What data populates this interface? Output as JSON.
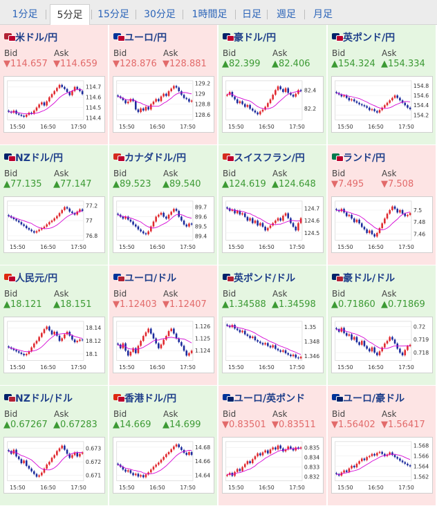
{
  "tabs": [
    "1分足",
    "5分足",
    "15分足",
    "30分足",
    "1時間足",
    "日足",
    "週足",
    "月足"
  ],
  "active_tab": "5分足",
  "labels": {
    "bid": "Bid",
    "ask": "Ask"
  },
  "colors": {
    "up_bg": "#e5f6e1",
    "down_bg": "#fde4e4",
    "up_text": "#3c9a34",
    "down_text": "#e26a6a",
    "pair_title": "#1f3f8a",
    "tab_link": "#2a63b8"
  },
  "pairs": [
    {
      "name": "米ドル/円",
      "dir": "down",
      "bid": "▼114.657",
      "ask": "▼114.659",
      "flags": [
        "#b22234",
        "#bc002d"
      ],
      "chart": {
        "type": "candlestick",
        "xticks": [
          "15:50",
          "16:50",
          "17:50"
        ],
        "yticks": [
          "114.7",
          "114.6",
          "114.5",
          "114.4"
        ],
        "ylim": [
          114.38,
          114.76
        ],
        "ma_color": "#d400d4",
        "closes": [
          114.46,
          114.45,
          114.47,
          114.44,
          114.43,
          114.42,
          114.41,
          114.43,
          114.45,
          114.44,
          114.47,
          114.5,
          114.53,
          114.55,
          114.52,
          114.56,
          114.6,
          114.63,
          114.66,
          114.69,
          114.72,
          114.7,
          114.68,
          114.65,
          114.62,
          114.66,
          114.7,
          114.68,
          114.66,
          114.63
        ]
      }
    },
    {
      "name": "ユーロ/円",
      "dir": "down",
      "bid": "▼128.876",
      "ask": "▼128.881",
      "flags": [
        "#003399",
        "#bc002d"
      ],
      "chart": {
        "type": "candlestick",
        "xticks": [
          "15:50",
          "16:50",
          "17:50"
        ],
        "yticks": [
          "129.2",
          "129",
          "128.8",
          "128.6"
        ],
        "ylim": [
          128.5,
          129.25
        ],
        "ma_color": "#d400d4",
        "closes": [
          128.95,
          128.92,
          128.88,
          128.82,
          128.85,
          128.9,
          128.86,
          128.7,
          128.65,
          128.72,
          128.68,
          128.75,
          128.7,
          128.8,
          128.85,
          128.9,
          128.86,
          128.95,
          129.0,
          128.96,
          129.05,
          129.1,
          129.15,
          129.12,
          129.05,
          128.98,
          128.92,
          128.9,
          128.85,
          128.87
        ]
      }
    },
    {
      "name": "豪ドル/円",
      "dir": "up",
      "bid": "▲82.399",
      "ask": "▲82.406",
      "flags": [
        "#012169",
        "#bc002d"
      ],
      "chart": {
        "type": "candlestick",
        "xticks": [
          "15:50",
          "16:50",
          "17:50"
        ],
        "yticks": [
          "82.4",
          "82.2"
        ],
        "ylim": [
          82.08,
          82.5
        ],
        "ma_color": "#d400d4",
        "closes": [
          82.35,
          82.38,
          82.33,
          82.3,
          82.26,
          82.28,
          82.25,
          82.22,
          82.24,
          82.2,
          82.18,
          82.16,
          82.14,
          82.17,
          82.19,
          82.22,
          82.26,
          82.3,
          82.35,
          82.4,
          82.44,
          82.41,
          82.38,
          82.42,
          82.37,
          82.35,
          82.33,
          82.36,
          82.4,
          82.39
        ]
      }
    },
    {
      "name": "英ポンド/円",
      "dir": "up",
      "bid": "▲154.324",
      "ask": "▲154.334",
      "flags": [
        "#012169",
        "#bc002d"
      ],
      "chart": {
        "type": "candlestick",
        "xticks": [
          "15:50",
          "16:50",
          "17:50"
        ],
        "yticks": [
          "154.8",
          "154.6",
          "154.4",
          "154.2"
        ],
        "ylim": [
          154.1,
          154.9
        ],
        "ma_color": "#d400d4",
        "closes": [
          154.65,
          154.62,
          154.58,
          154.6,
          154.55,
          154.5,
          154.52,
          154.48,
          154.45,
          154.42,
          154.4,
          154.38,
          154.35,
          154.3,
          154.32,
          154.28,
          154.25,
          154.3,
          154.35,
          154.4,
          154.45,
          154.5,
          154.55,
          154.6,
          154.55,
          154.5,
          154.45,
          154.4,
          154.35,
          154.32
        ]
      }
    },
    {
      "name": "NZドル/円",
      "dir": "up",
      "bid": "▲77.135",
      "ask": "▲77.147",
      "flags": [
        "#012169",
        "#bc002d"
      ],
      "chart": {
        "type": "candlestick",
        "xticks": [
          "15:50",
          "16:50",
          "17:50"
        ],
        "yticks": [
          "77.2",
          "77",
          "76.8"
        ],
        "ylim": [
          76.74,
          77.26
        ],
        "ma_color": "#d400d4",
        "closes": [
          77.06,
          77.04,
          77.02,
          77.0,
          76.98,
          76.95,
          76.93,
          76.9,
          76.88,
          76.86,
          76.84,
          76.86,
          76.88,
          76.9,
          76.92,
          76.95,
          76.98,
          77.0,
          77.03,
          77.06,
          77.1,
          77.14,
          77.18,
          77.16,
          77.12,
          77.1,
          77.08,
          77.12,
          77.15,
          77.13
        ]
      }
    },
    {
      "name": "カナダドル/円",
      "dir": "up",
      "bid": "▲89.523",
      "ask": "▲89.540",
      "flags": [
        "#d52b1e",
        "#bc002d"
      ],
      "chart": {
        "type": "candlestick",
        "xticks": [
          "15:50",
          "16:50",
          "17:50"
        ],
        "yticks": [
          "89.7",
          "89.6",
          "89.5",
          "89.4"
        ],
        "ylim": [
          89.36,
          89.76
        ],
        "ma_color": "#d400d4",
        "closes": [
          89.62,
          89.6,
          89.58,
          89.6,
          89.57,
          89.55,
          89.52,
          89.5,
          89.47,
          89.45,
          89.43,
          89.42,
          89.45,
          89.5,
          89.55,
          89.6,
          89.62,
          89.64,
          89.6,
          89.58,
          89.62,
          89.65,
          89.68,
          89.66,
          89.6,
          89.56,
          89.52,
          89.5,
          89.53,
          89.52
        ]
      }
    },
    {
      "name": "スイスフラン/円",
      "dir": "up",
      "bid": "▲124.619",
      "ask": "▲124.648",
      "flags": [
        "#d52b1e",
        "#bc002d"
      ],
      "chart": {
        "type": "candlestick",
        "xticks": [
          "15:50",
          "16:50",
          "17:50"
        ],
        "yticks": [
          "124.7",
          "124.6",
          "124.5"
        ],
        "ylim": [
          124.44,
          124.76
        ],
        "ma_color": "#d400d4",
        "closes": [
          124.7,
          124.68,
          124.69,
          124.66,
          124.68,
          124.65,
          124.66,
          124.63,
          124.6,
          124.62,
          124.58,
          124.6,
          124.56,
          124.58,
          124.55,
          124.52,
          124.54,
          124.56,
          124.58,
          124.6,
          124.62,
          124.6,
          124.64,
          124.66,
          124.62,
          124.58,
          124.55,
          124.52,
          124.58,
          124.62
        ]
      }
    },
    {
      "name": "ランド/円",
      "dir": "down",
      "bid": "▼7.495",
      "ask": "▼7.508",
      "flags": [
        "#007a4d",
        "#bc002d"
      ],
      "chart": {
        "type": "candlestick",
        "xticks": [
          "15:50",
          "16:50",
          "17:50"
        ],
        "yticks": [
          "7.5",
          "7.48",
          "7.46"
        ],
        "ylim": [
          7.45,
          7.515
        ],
        "ma_color": "#d400d4",
        "closes": [
          7.5,
          7.498,
          7.502,
          7.496,
          7.49,
          7.492,
          7.486,
          7.48,
          7.484,
          7.478,
          7.472,
          7.468,
          7.462,
          7.466,
          7.46,
          7.456,
          7.462,
          7.47,
          7.478,
          7.486,
          7.494,
          7.5,
          7.506,
          7.502,
          7.496,
          7.5,
          7.494,
          7.49,
          7.492,
          7.495
        ]
      }
    },
    {
      "name": "人民元/円",
      "dir": "up",
      "bid": "▲18.121",
      "ask": "▲18.151",
      "flags": [
        "#de2910",
        "#bc002d"
      ],
      "chart": {
        "type": "candlestick",
        "xticks": [
          "15:50",
          "16:50",
          "17:50"
        ],
        "yticks": [
          "18.14",
          "18.12",
          "18.1"
        ],
        "ylim": [
          18.09,
          18.15
        ],
        "ma_color": "#d400d4",
        "closes": [
          18.11,
          18.108,
          18.106,
          18.104,
          18.102,
          18.1,
          18.098,
          18.1,
          18.104,
          18.11,
          18.116,
          18.12,
          18.126,
          18.132,
          18.138,
          18.142,
          18.136,
          18.13,
          18.134,
          18.128,
          18.12,
          18.124,
          18.13,
          18.134,
          18.128,
          18.122,
          18.118,
          18.12,
          18.122,
          18.121
        ]
      }
    },
    {
      "name": "ユーロ/ドル",
      "dir": "down",
      "bid": "▼1.12403",
      "ask": "▼1.12407",
      "flags": [
        "#003399",
        "#b22234"
      ],
      "chart": {
        "type": "candlestick",
        "xticks": [
          "15:50",
          "16:50",
          "17:50"
        ],
        "yticks": [
          "1.126",
          "1.125",
          "1.124"
        ],
        "ylim": [
          1.1232,
          1.1264
        ],
        "ma_color": "#d400d4",
        "closes": [
          1.1245,
          1.1242,
          1.1246,
          1.124,
          1.1236,
          1.1239,
          1.1242,
          1.1238,
          1.1244,
          1.1248,
          1.1252,
          1.1255,
          1.1258,
          1.1254,
          1.125,
          1.1246,
          1.1242,
          1.1245,
          1.1249,
          1.1252,
          1.1256,
          1.1258,
          1.1254,
          1.125,
          1.1247,
          1.1244,
          1.124,
          1.1236,
          1.1238,
          1.124
        ]
      }
    },
    {
      "name": "英ポンド/ドル",
      "dir": "up",
      "bid": "▲1.34588",
      "ask": "▲1.34598",
      "flags": [
        "#012169",
        "#b22234"
      ],
      "chart": {
        "type": "candlestick",
        "xticks": [
          "15:50",
          "16:50",
          "17:50"
        ],
        "yticks": [
          "1.35",
          "1.348",
          "1.346"
        ],
        "ylim": [
          1.3454,
          1.3508
        ],
        "ma_color": "#d400d4",
        "closes": [
          1.3502,
          1.35,
          1.3503,
          1.3498,
          1.3496,
          1.3493,
          1.3495,
          1.349,
          1.3488,
          1.3485,
          1.3487,
          1.3482,
          1.348,
          1.3478,
          1.3476,
          1.3478,
          1.3474,
          1.3472,
          1.3475,
          1.347,
          1.3468,
          1.3466,
          1.3468,
          1.3464,
          1.3462,
          1.346,
          1.3462,
          1.3458,
          1.3457,
          1.3459
        ]
      }
    },
    {
      "name": "豪ドル/ドル",
      "dir": "up",
      "bid": "▲0.71860",
      "ask": "▲0.71869",
      "flags": [
        "#012169",
        "#b22234"
      ],
      "chart": {
        "type": "candlestick",
        "xticks": [
          "15:50",
          "16:50",
          "17:50"
        ],
        "yticks": [
          "0.72",
          "0.719",
          "0.718"
        ],
        "ylim": [
          0.7174,
          0.7204
        ],
        "ma_color": "#d400d4",
        "closes": [
          0.7198,
          0.7196,
          0.7199,
          0.7195,
          0.7193,
          0.7194,
          0.719,
          0.7192,
          0.7188,
          0.7186,
          0.7189,
          0.7185,
          0.7183,
          0.7181,
          0.7184,
          0.718,
          0.7178,
          0.7181,
          0.7184,
          0.7187,
          0.7189,
          0.7192,
          0.719,
          0.7187,
          0.7183,
          0.718,
          0.7178,
          0.7182,
          0.7185,
          0.7186
        ]
      }
    },
    {
      "name": "NZドル/ドル",
      "dir": "up",
      "bid": "▲0.67267",
      "ask": "▲0.67283",
      "flags": [
        "#012169",
        "#b22234"
      ],
      "chart": {
        "type": "candlestick",
        "xticks": [
          "15:50",
          "16:50",
          "17:50"
        ],
        "yticks": [
          "0.673",
          "0.672",
          "0.671"
        ],
        "ylim": [
          0.6706,
          0.6735
        ],
        "ma_color": "#d400d4",
        "closes": [
          0.6728,
          0.6726,
          0.6729,
          0.6724,
          0.6722,
          0.6719,
          0.6721,
          0.6717,
          0.6715,
          0.6713,
          0.6711,
          0.6709,
          0.671,
          0.6712,
          0.6715,
          0.6718,
          0.672,
          0.6723,
          0.6725,
          0.6728,
          0.673,
          0.6732,
          0.6729,
          0.6726,
          0.6723,
          0.6725,
          0.6727,
          0.6724,
          0.6726,
          0.6727
        ]
      }
    },
    {
      "name": "香港ドル/円",
      "dir": "up",
      "bid": "▲14.669",
      "ask": "▲14.699",
      "flags": [
        "#de2910",
        "#bc002d"
      ],
      "chart": {
        "type": "candlestick",
        "xticks": [
          "15:50",
          "16:50",
          "17:50"
        ],
        "yticks": [
          "14.68",
          "14.66",
          "14.64"
        ],
        "ylim": [
          14.632,
          14.688
        ],
        "ma_color": "#d400d4",
        "closes": [
          14.655,
          14.652,
          14.648,
          14.645,
          14.647,
          14.643,
          14.64,
          14.642,
          14.638,
          14.64,
          14.637,
          14.641,
          14.644,
          14.648,
          14.652,
          14.655,
          14.658,
          14.662,
          14.666,
          14.67,
          14.673,
          14.677,
          14.681,
          14.684,
          14.68,
          14.676,
          14.672,
          14.669,
          14.673,
          14.669
        ]
      }
    },
    {
      "name": "ユーロ/英ポンド",
      "dir": "down",
      "bid": "▼0.83501",
      "ask": "▼0.83511",
      "flags": [
        "#003399",
        "#012169"
      ],
      "chart": {
        "type": "candlestick",
        "xticks": [
          "15:50",
          "16:50",
          "17:50"
        ],
        "yticks": [
          "0.835",
          "0.834",
          "0.833",
          "0.832"
        ],
        "ylim": [
          0.8316,
          0.8356
        ],
        "ma_color": "#d400d4",
        "closes": [
          0.8322,
          0.8324,
          0.8321,
          0.8325,
          0.8328,
          0.8326,
          0.833,
          0.8333,
          0.8336,
          0.8334,
          0.8338,
          0.8341,
          0.8344,
          0.8342,
          0.8345,
          0.8347,
          0.8344,
          0.8348,
          0.835,
          0.8348,
          0.8352,
          0.8349,
          0.8346,
          0.8348,
          0.8351,
          0.8349,
          0.8347,
          0.835,
          0.8349,
          0.835
        ]
      }
    },
    {
      "name": "ユーロ/豪ドル",
      "dir": "down",
      "bid": "▼1.56402",
      "ask": "▼1.56417",
      "flags": [
        "#003399",
        "#012169"
      ],
      "chart": {
        "type": "candlestick",
        "xticks": [
          "15:50",
          "16:50",
          "17:50"
        ],
        "yticks": [
          "1.568",
          "1.566",
          "1.564",
          "1.562"
        ],
        "ylim": [
          1.5612,
          1.5688
        ],
        "ma_color": "#d400d4",
        "closes": [
          1.5625,
          1.5622,
          1.5628,
          1.5632,
          1.5629,
          1.5636,
          1.5641,
          1.5638,
          1.5645,
          1.565,
          1.5655,
          1.5652,
          1.5658,
          1.566,
          1.5664,
          1.5661,
          1.5666,
          1.5668,
          1.5664,
          1.566,
          1.5663,
          1.5667,
          1.5662,
          1.5658,
          1.5655,
          1.5651,
          1.5648,
          1.5645,
          1.5642,
          1.564
        ]
      }
    }
  ]
}
